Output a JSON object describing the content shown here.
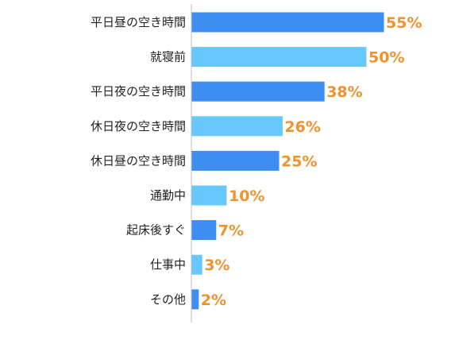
{
  "chart_data": {
    "type": "bar",
    "orientation": "horizontal",
    "categories": [
      "平日昼の空き時間",
      "就寝前",
      "平日夜の空き時間",
      "休日夜の空き時間",
      "休日昼の空き時間",
      "通勤中",
      "起床後すぐ",
      "仕事中",
      "その他"
    ],
    "values": [
      55,
      50,
      38,
      26,
      25,
      10,
      7,
      3,
      2
    ],
    "value_labels": [
      "55%",
      "50%",
      "38%",
      "26%",
      "25%",
      "10%",
      "7%",
      "3%",
      "2%"
    ],
    "xlim": [
      0,
      55
    ],
    "grid": false,
    "legend": "none",
    "colors": {
      "bar_primary": "#3d8ef0",
      "bar_secondary": "#66c8fc",
      "value_label": "#f0922e",
      "axis": "#bfbfbf"
    }
  }
}
